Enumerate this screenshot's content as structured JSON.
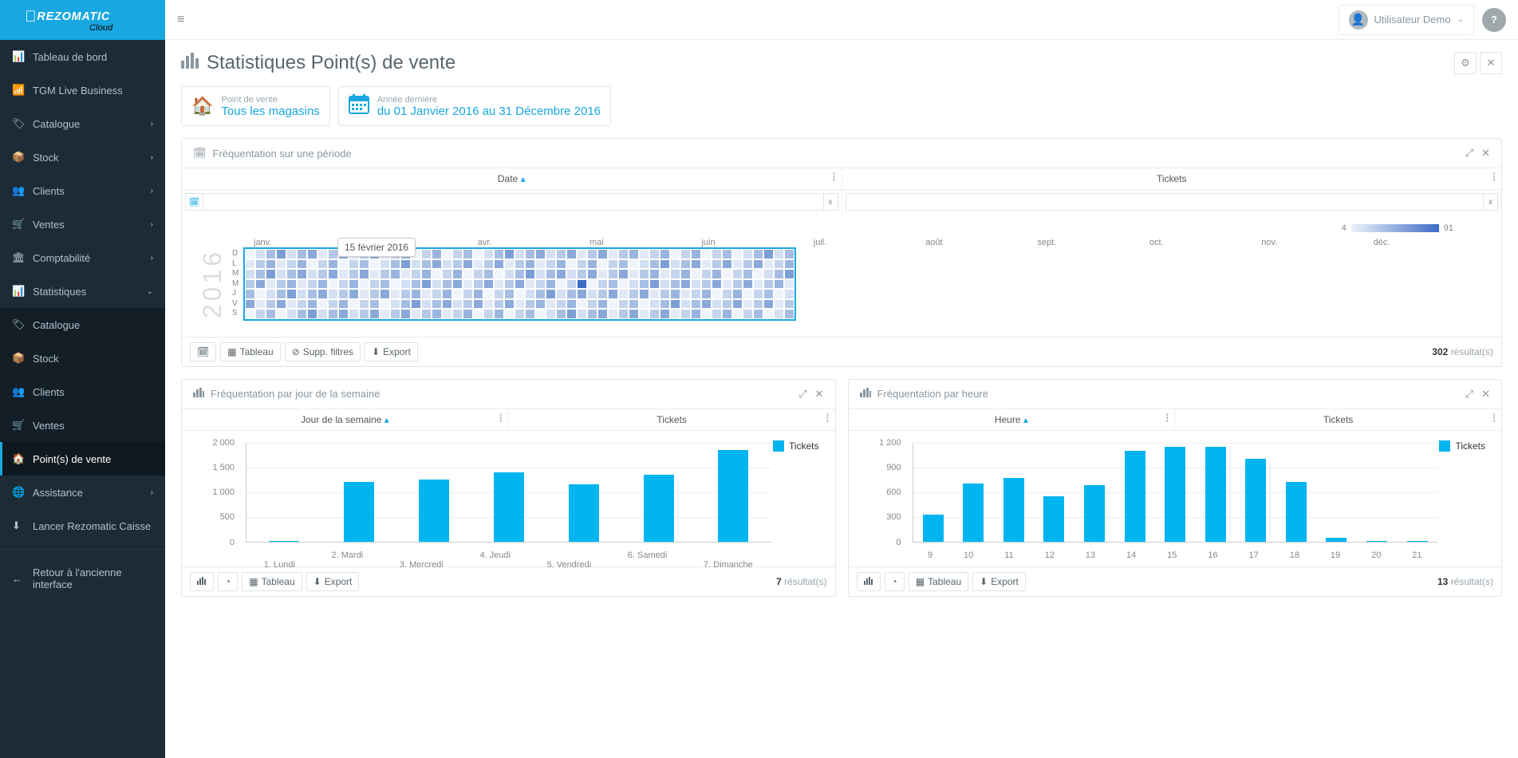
{
  "brand": {
    "name": "REZOMATIC",
    "sub": "Cloud",
    "accent": "#18a7e0"
  },
  "topbar": {
    "user_name": "Utilisateur Demo"
  },
  "sidebar": {
    "items": [
      {
        "label": "Tableau de bord",
        "icon": "dashboard"
      },
      {
        "label": "TGM Live Business",
        "icon": "rss"
      },
      {
        "label": "Catalogue",
        "icon": "tag",
        "expandable": true
      },
      {
        "label": "Stock",
        "icon": "cubes",
        "expandable": true
      },
      {
        "label": "Clients",
        "icon": "users",
        "expandable": true
      },
      {
        "label": "Ventes",
        "icon": "cart",
        "expandable": true
      },
      {
        "label": "Comptabilité",
        "icon": "bank",
        "expandable": true
      },
      {
        "label": "Statistiques",
        "icon": "bar-chart",
        "expandable": true,
        "expanded": true
      }
    ],
    "sub_items": [
      {
        "label": "Catalogue",
        "icon": "tag"
      },
      {
        "label": "Stock",
        "icon": "cubes"
      },
      {
        "label": "Clients",
        "icon": "users"
      },
      {
        "label": "Ventes",
        "icon": "cart"
      },
      {
        "label": "Point(s) de vente",
        "icon": "home",
        "active": true
      }
    ],
    "items_tail": [
      {
        "label": "Assistance",
        "icon": "globe",
        "expandable": true
      },
      {
        "label": "Lancer Rezomatic Caisse",
        "icon": "download"
      }
    ],
    "footer_link": "Retour à l'ancienne interface"
  },
  "page": {
    "title": "Statistiques Point(s) de vente"
  },
  "filters": {
    "pos": {
      "small": "Point de vente",
      "big": "Tous les magasins"
    },
    "period": {
      "small": "Année dernière",
      "big": "du 01 Janvier 2016 au 31 Décembre 2016"
    }
  },
  "heatmap_panel": {
    "title": "Fréquentation sur une période",
    "date_col": "Date",
    "tickets_col": "Tickets",
    "legend_min": "4",
    "legend_max": "91",
    "year": "2016",
    "tooltip": "15 février 2016",
    "months": [
      "janv.",
      "f",
      "avr.",
      "mai",
      "juin",
      "juil.",
      "août",
      "sept.",
      "oct.",
      "nov.",
      "déc."
    ],
    "days": [
      "D",
      "L",
      "M",
      "M",
      "J",
      "V",
      "S"
    ],
    "foot_tableau": "Tableau",
    "foot_supp": "Supp. filtres",
    "foot_export": "Export",
    "result_count": "302",
    "result_suffix": " résultat(s)",
    "weeks": 53,
    "colors": [
      "#f0f4fb",
      "#e2e9f6",
      "#d3dff2",
      "#c5d4ed",
      "#b6c9e8",
      "#a7bee4",
      "#99b4df",
      "#8aa9da",
      "#7c9ed6",
      "#6d93d1",
      "#4f7ec8",
      "#3b6bc5"
    ]
  },
  "weekday_panel": {
    "title": "Fréquentation par jour de la semaine",
    "col1": "Jour de la semaine",
    "col2": "Tickets",
    "legend": "Tickets",
    "result_count": "7",
    "result_suffix": " résultat(s)",
    "foot_tableau": "Tableau",
    "foot_export": "Export",
    "chart": {
      "type": "bar",
      "categories": [
        "1. Lundi",
        "2. Mardi",
        "3. Mercredi",
        "4. Jeudi",
        "5. Vendredi",
        "6. Samedi",
        "7. Dimanche"
      ],
      "values": [
        10,
        1200,
        1250,
        1400,
        1150,
        1350,
        1850
      ],
      "ylim": [
        0,
        2000
      ],
      "yticks": [
        0,
        500,
        1000,
        1500,
        2000
      ],
      "ytick_labels": [
        "0",
        "500",
        "1 000",
        "1 500",
        "2 000"
      ],
      "bar_color": "#00b4f0",
      "grid_color": "#eeeeee"
    }
  },
  "hour_panel": {
    "title": "Fréquentation par heure",
    "col1": "Heure",
    "col2": "Tickets",
    "legend": "Tickets",
    "result_count": "13",
    "result_suffix": " résultat(s)",
    "foot_tableau": "Tableau",
    "foot_export": "Export",
    "chart": {
      "type": "bar",
      "categories": [
        "9",
        "10",
        "11",
        "12",
        "13",
        "14",
        "15",
        "16",
        "17",
        "18",
        "19",
        "20",
        "21"
      ],
      "values": [
        320,
        700,
        770,
        550,
        680,
        1100,
        1150,
        1150,
        1000,
        720,
        40,
        5,
        2
      ],
      "ylim": [
        0,
        1200
      ],
      "yticks": [
        0,
        300,
        600,
        900,
        1200
      ],
      "ytick_labels": [
        "0",
        "300",
        "600",
        "900",
        "1 200"
      ],
      "bar_color": "#00b4f0",
      "grid_color": "#eeeeee"
    }
  }
}
